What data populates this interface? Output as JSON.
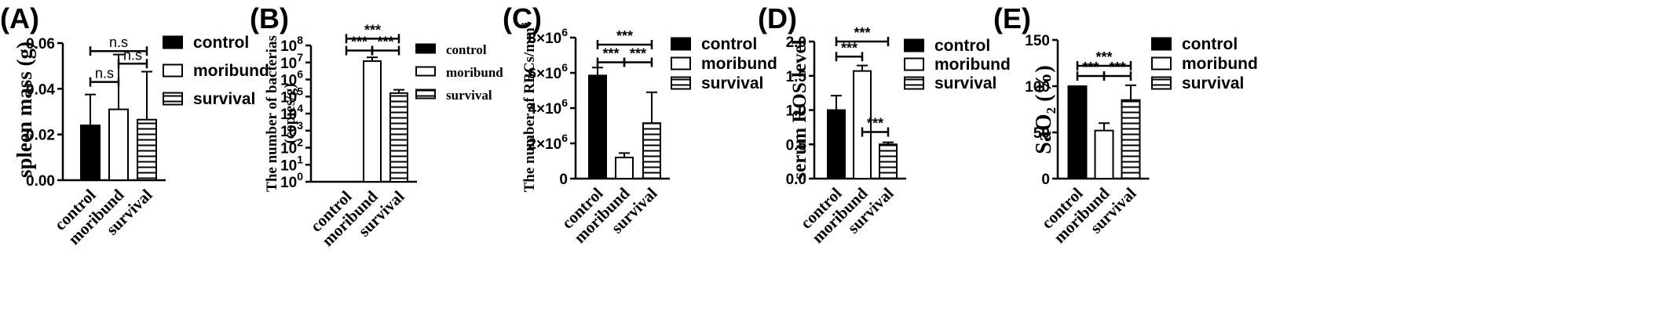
{
  "colors": {
    "ink": "#000000",
    "paper": "#ffffff"
  },
  "chart_data": [
    {
      "panel": "(A)",
      "type": "bar",
      "ylabel": "spleen mass (g)",
      "categories": [
        "control",
        "moribund",
        "survival"
      ],
      "values": [
        0.024,
        0.031,
        0.0265
      ],
      "errors": [
        0.0135,
        0.024,
        0.021
      ],
      "fills": [
        "solid",
        "open",
        "hatched"
      ],
      "ylim": [
        0,
        0.06
      ],
      "yticks": [
        "0.00",
        "0.02",
        "0.04",
        "0.06"
      ],
      "legend": [
        "control",
        "moribund",
        "survival"
      ],
      "legend_position": "right",
      "significance": [
        {
          "from": 0,
          "to": 1,
          "label": "n.s",
          "y": 0.043
        },
        {
          "from": 1,
          "to": 2,
          "label": "n.s",
          "y": 0.051
        },
        {
          "from": 0,
          "to": 2,
          "label": "n.s",
          "y": 0.0565
        }
      ]
    },
    {
      "panel": "(B)",
      "type": "bar",
      "ylabel": "The number of bacterias (copies/g)",
      "yscale": "log",
      "categories": [
        "control",
        "moribund",
        "survival"
      ],
      "values": [
        1,
        12000000,
        160000
      ],
      "errors": [
        0,
        8000000,
        90000
      ],
      "fills": [
        "solid",
        "open",
        "hatched"
      ],
      "ylim": [
        1,
        100000000
      ],
      "yticks": [
        "10^0",
        "10^1",
        "10^2",
        "10^3",
        "10^4",
        "10^5",
        "10^6",
        "10^7",
        "10^8"
      ],
      "legend": [
        "control",
        "moribund",
        "survival"
      ],
      "legend_position": "right",
      "significance": [
        {
          "from": 0,
          "to": 1,
          "label": "***",
          "y": 50000000
        },
        {
          "from": 1,
          "to": 2,
          "label": "***",
          "y": 50000000
        },
        {
          "from": 0,
          "to": 2,
          "label": "***",
          "y": 250000000
        }
      ]
    },
    {
      "panel": "(C)",
      "type": "bar",
      "ylabel": "The number of RBCs/mm3",
      "categories": [
        "control",
        "moribund",
        "survival"
      ],
      "values": [
        5850000,
        1200000,
        3150000
      ],
      "errors": [
        450000,
        250000,
        1750000
      ],
      "fills": [
        "solid",
        "open",
        "hatched"
      ],
      "ylim": [
        0,
        8000000
      ],
      "yticks": [
        "0",
        "2×10^6",
        "4×10^6",
        "6×10^6",
        "8×10^6"
      ],
      "legend": [
        "control",
        "moribund",
        "survival"
      ],
      "legend_position": "right",
      "significance": [
        {
          "from": 0,
          "to": 1,
          "label": "***",
          "y": 6600000
        },
        {
          "from": 1,
          "to": 2,
          "label": "***",
          "y": 6600000
        },
        {
          "from": 0,
          "to": 2,
          "label": "***",
          "y": 7600000
        }
      ]
    },
    {
      "panel": "(D)",
      "type": "bar",
      "ylabel": "serum ROS level",
      "categories": [
        "control",
        "moribund",
        "survival"
      ],
      "values": [
        1.0,
        1.57,
        0.5
      ],
      "errors": [
        0.21,
        0.08,
        0.03
      ],
      "fills": [
        "solid",
        "open",
        "hatched"
      ],
      "ylim": [
        0,
        2.0
      ],
      "yticks": [
        "0.0",
        "0.5",
        "1.0",
        "1.5",
        "2.0"
      ],
      "legend": [
        "control",
        "moribund",
        "survival"
      ],
      "legend_position": "right",
      "significance": [
        {
          "from": 0,
          "to": 1,
          "label": "***",
          "y": 1.78
        },
        {
          "from": 1,
          "to": 2,
          "label": "***",
          "y": 0.68
        },
        {
          "from": 0,
          "to": 2,
          "label": "***",
          "y": 2.0
        }
      ]
    },
    {
      "panel": "(E)",
      "type": "bar",
      "ylabel": "SaO2 (%)",
      "categories": [
        "control",
        "moribund",
        "survival"
      ],
      "values": [
        100,
        52,
        85
      ],
      "errors": [
        0,
        8,
        16
      ],
      "fills": [
        "solid",
        "open",
        "hatched"
      ],
      "ylim": [
        0,
        150
      ],
      "yticks": [
        "0",
        "50",
        "100",
        "150"
      ],
      "legend": [
        "control",
        "moribund",
        "survival"
      ],
      "legend_position": "right",
      "significance": [
        {
          "from": 0,
          "to": 1,
          "label": "***",
          "y": 111
        },
        {
          "from": 1,
          "to": 2,
          "label": "***",
          "y": 111
        },
        {
          "from": 0,
          "to": 2,
          "label": "***",
          "y": 122
        }
      ]
    }
  ]
}
